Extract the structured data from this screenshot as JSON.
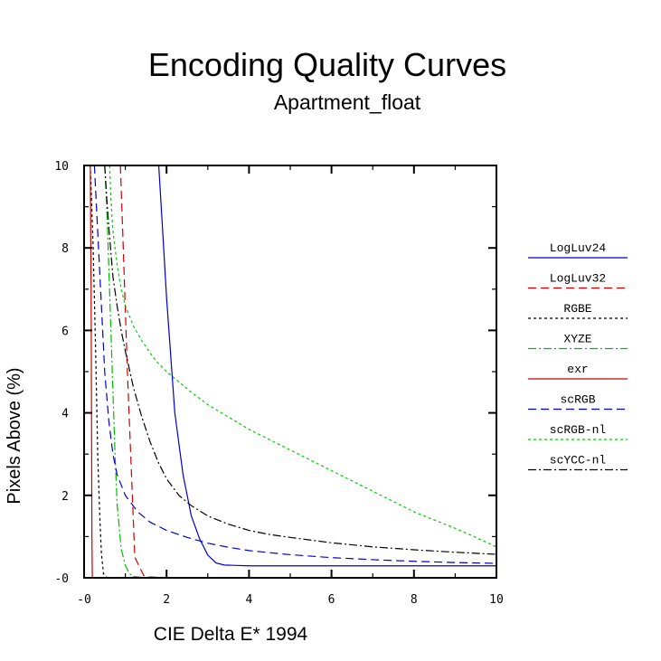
{
  "chart_data": {
    "type": "line",
    "title": "Encoding Quality Curves",
    "subtitle": "Apartment_float",
    "xlabel": "CIE Delta E* 1994",
    "ylabel": "Pixels Above (%)",
    "xlim": [
      0,
      10
    ],
    "ylim": [
      0,
      10
    ],
    "xticks": [
      0,
      2,
      4,
      6,
      8,
      10
    ],
    "xtick_labels": [
      "-0",
      "2",
      "4",
      "6",
      "8",
      "10"
    ],
    "yticks": [
      0,
      2,
      4,
      6,
      8,
      10
    ],
    "ytick_labels": [
      "-0",
      "2",
      "4",
      "6",
      "8",
      "10"
    ],
    "grid": false,
    "legend_position": "right",
    "series": [
      {
        "name": "LogLuv24",
        "color": "#0000cc",
        "dash": "solid",
        "x": [
          1.81,
          1.9,
          2.0,
          2.1,
          2.2,
          2.4,
          2.6,
          2.8,
          3.0,
          3.2,
          3.4,
          3.7,
          4.0,
          5.0,
          6.0,
          7.0,
          8.0,
          9.0,
          10.0
        ],
        "y": [
          10.0,
          8.5,
          6.8,
          5.4,
          4.0,
          2.5,
          1.5,
          0.95,
          0.55,
          0.36,
          0.31,
          0.3,
          0.29,
          0.29,
          0.29,
          0.29,
          0.29,
          0.29,
          0.29
        ]
      },
      {
        "name": "LogLuv32",
        "color": "#cc0000",
        "dash": "dashed",
        "x": [
          0.88,
          0.95,
          1.05,
          1.15,
          1.23,
          1.35,
          1.45,
          1.5,
          2.0,
          4.0,
          6.0,
          8.0,
          10.0
        ],
        "y": [
          10.0,
          8.0,
          5.0,
          2.5,
          0.5,
          0.25,
          0.05,
          0.02,
          0.01,
          0.01,
          0.01,
          0.01,
          0.01
        ]
      },
      {
        "name": "RGBE",
        "color": "#000000",
        "dash": "dotted",
        "x": [
          0.15,
          0.22,
          0.28,
          0.33,
          0.38,
          0.42,
          0.47,
          0.55,
          1.0,
          2.0,
          4.0,
          6.0,
          8.0,
          10.0
        ],
        "y": [
          10.0,
          8.0,
          5.5,
          3.0,
          1.5,
          0.6,
          0.1,
          0.01,
          0.0,
          0.0,
          0.0,
          0.0,
          0.0,
          0.0
        ]
      },
      {
        "name": "XYZE",
        "color": "#00bb00",
        "dash": "dashdot",
        "x": [
          0.5,
          0.55,
          0.6,
          0.65,
          0.7,
          0.75,
          0.8,
          0.9,
          1.0,
          1.1,
          1.2,
          1.4,
          2.0,
          4.0,
          6.0,
          8.0,
          10.0
        ],
        "y": [
          10.0,
          9.0,
          7.5,
          6.0,
          4.5,
          3.0,
          1.8,
          0.7,
          0.3,
          0.1,
          0.03,
          0.01,
          0.0,
          0.0,
          0.0,
          0.0,
          0.0
        ]
      },
      {
        "name": "exr",
        "color": "#cc0000",
        "dash": "solid",
        "x": [
          0.15,
          0.17,
          0.18,
          0.19,
          0.2,
          1.0,
          4.0,
          6.0,
          8.0,
          10.0
        ],
        "y": [
          10.0,
          7.0,
          4.0,
          1.0,
          0.0,
          0.0,
          0.0,
          0.0,
          0.0,
          0.0
        ]
      },
      {
        "name": "scRGB",
        "color": "#0000cc",
        "dash": "dashed",
        "x": [
          0.25,
          0.3,
          0.35,
          0.4,
          0.45,
          0.5,
          0.6,
          0.7,
          0.8,
          1.0,
          1.3,
          1.6,
          2.0,
          2.5,
          3.0,
          3.5,
          4.0,
          5.0,
          6.0,
          7.0,
          8.0,
          9.0,
          10.0
        ],
        "y": [
          10.0,
          9.0,
          8.0,
          7.0,
          6.0,
          5.0,
          3.8,
          3.0,
          2.5,
          2.0,
          1.6,
          1.35,
          1.15,
          0.98,
          0.84,
          0.74,
          0.66,
          0.56,
          0.49,
          0.44,
          0.4,
          0.37,
          0.35
        ]
      },
      {
        "name": "scRGB-nl",
        "color": "#00cc00",
        "dash": "dotted",
        "x": [
          0.62,
          0.65,
          0.7,
          0.8,
          0.9,
          1.0,
          1.2,
          1.4,
          1.6,
          1.8,
          2.0,
          2.3,
          2.6,
          3.0,
          3.5,
          4.0,
          4.5,
          5.0,
          5.5,
          6.0,
          6.5,
          7.0,
          7.5,
          8.0,
          8.5,
          9.0,
          9.5,
          10.0
        ],
        "y": [
          10.0,
          9.2,
          8.4,
          7.6,
          7.0,
          6.6,
          6.1,
          5.75,
          5.45,
          5.2,
          5.0,
          4.75,
          4.5,
          4.2,
          3.9,
          3.6,
          3.35,
          3.1,
          2.85,
          2.6,
          2.35,
          2.1,
          1.85,
          1.6,
          1.4,
          1.2,
          0.98,
          0.75
        ]
      },
      {
        "name": "scYCC-nl",
        "color": "#000000",
        "dash": "dashdot",
        "x": [
          0.5,
          0.55,
          0.6,
          0.65,
          0.7,
          0.8,
          0.9,
          1.0,
          1.2,
          1.4,
          1.6,
          1.8,
          2.0,
          2.3,
          2.6,
          3.0,
          3.5,
          4.0,
          4.5,
          5.0,
          6.0,
          7.0,
          8.0,
          9.0,
          10.0
        ],
        "y": [
          10.0,
          9.2,
          8.5,
          7.9,
          7.3,
          6.6,
          6.0,
          5.5,
          4.6,
          3.9,
          3.3,
          2.8,
          2.4,
          2.0,
          1.75,
          1.5,
          1.3,
          1.15,
          1.05,
          0.98,
          0.85,
          0.75,
          0.68,
          0.62,
          0.57
        ]
      }
    ]
  }
}
